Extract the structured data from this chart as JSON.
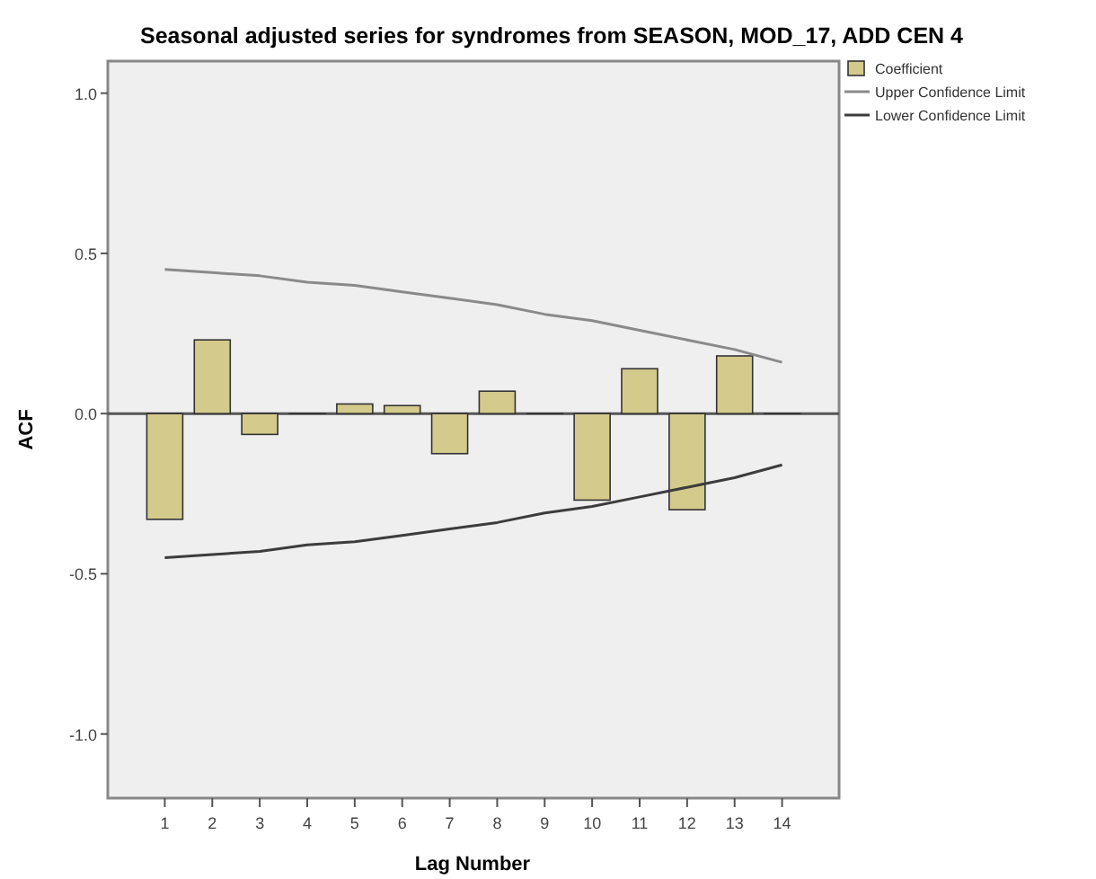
{
  "chart_data": {
    "type": "bar",
    "title": "Seasonal adjusted series for syndromes from SEASON, MOD_17, ADD CEN 4",
    "xlabel": "Lag Number",
    "ylabel": "ACF",
    "x": [
      1,
      2,
      3,
      4,
      5,
      6,
      7,
      8,
      9,
      10,
      11,
      12,
      13,
      14
    ],
    "xlim": [
      -0.2,
      15.2
    ],
    "xticks": [
      1,
      2,
      3,
      4,
      5,
      6,
      7,
      8,
      9,
      10,
      11,
      12,
      13,
      14
    ],
    "series": [
      {
        "name": "Coefficient",
        "color": "#d4ca8c",
        "values": [
          -0.33,
          0.23,
          -0.065,
          0,
          0.03,
          0.025,
          -0.125,
          0.07,
          0,
          -0.27,
          0.14,
          -0.3,
          0.18,
          0
        ]
      },
      {
        "name": "Upper Confidence Limit",
        "type": "line",
        "color": "#8a8a8a",
        "values": [
          0.45,
          0.44,
          0.43,
          0.41,
          0.4,
          0.38,
          0.36,
          0.34,
          0.31,
          0.29,
          0.26,
          0.23,
          0.2,
          0.16
        ]
      },
      {
        "name": "Lower Confidence Limit",
        "type": "line",
        "color": "#3c3c3c",
        "values": [
          -0.45,
          -0.44,
          -0.43,
          -0.41,
          -0.4,
          -0.38,
          -0.36,
          -0.34,
          -0.31,
          -0.29,
          -0.26,
          -0.23,
          -0.2,
          -0.16
        ]
      }
    ],
    "ylim": [
      -1.2,
      1.1
    ],
    "yticks": [
      {
        "value": -1,
        "label": "-1.0"
      },
      -0.5,
      {
        "value": 0,
        "label": "0.0"
      },
      0.5,
      {
        "value": 1,
        "label": "1.0"
      }
    ],
    "ref_lines": [
      {
        "axis": "y",
        "value": 0,
        "color": "#555555"
      }
    ],
    "legend": "top right"
  }
}
